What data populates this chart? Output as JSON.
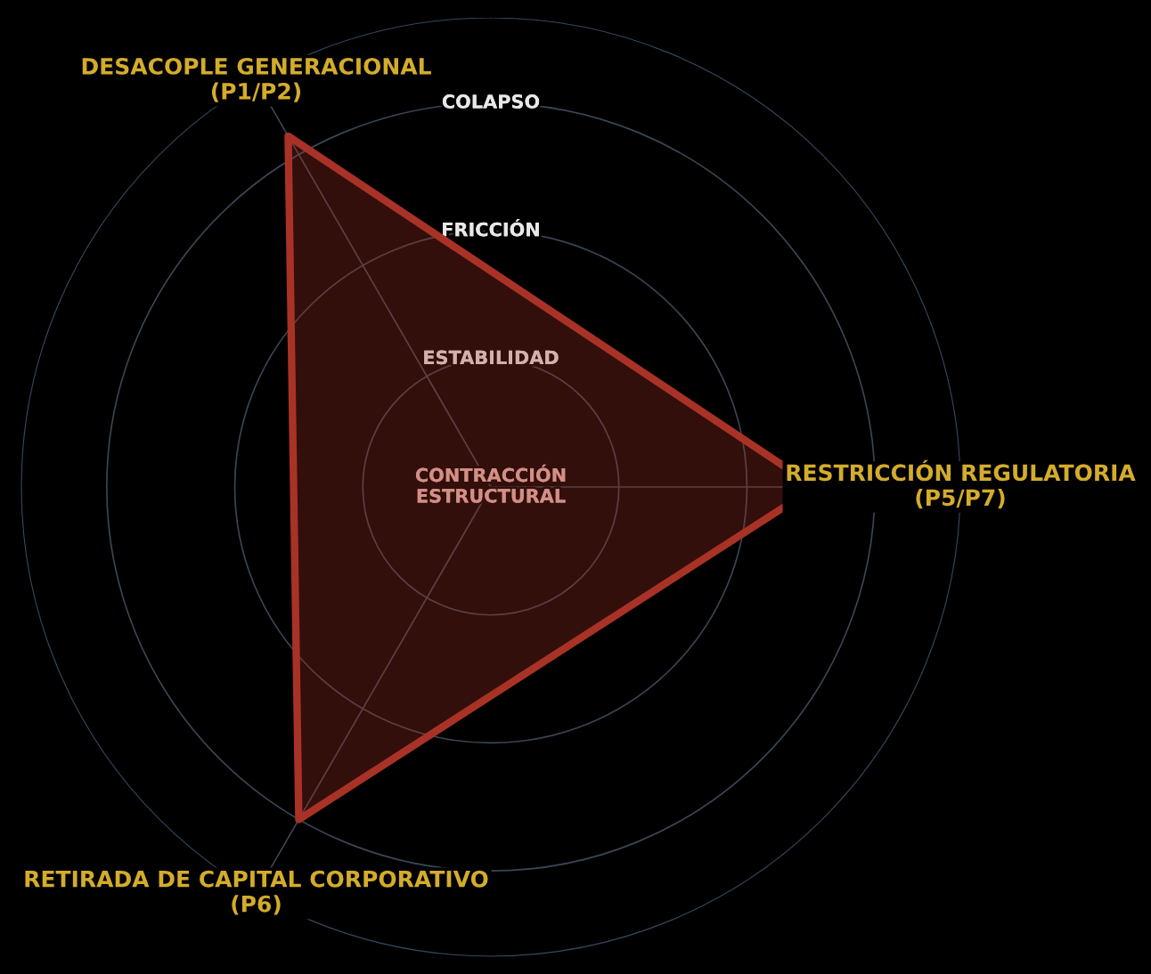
{
  "chart_data": {
    "type": "radar",
    "categories": [
      "RESTRICCIÓN REGULATORIA\n(P5/P7)",
      "RETIRADA DE CAPITAL CORPORATIVO\n(P6)",
      "DESACOPLE GENERACIONAL\n(P1/P2)"
    ],
    "series": [
      {
        "color": "#a93226",
        "values": [
          7.6,
          9.0,
          9.5
        ]
      }
    ],
    "ylim": [
      0,
      11
    ],
    "yticks": [
      {
        "value": 0,
        "label": "CONTRACCIÓN\nESTRUCTURAL"
      },
      {
        "value": 3,
        "label": "ESTABILIDAD"
      },
      {
        "value": 6,
        "label": "FRICCIÓN"
      },
      {
        "value": 9,
        "label": "COLAPSO"
      }
    ],
    "grid": true,
    "marker": "none",
    "line_style": "solid"
  }
}
